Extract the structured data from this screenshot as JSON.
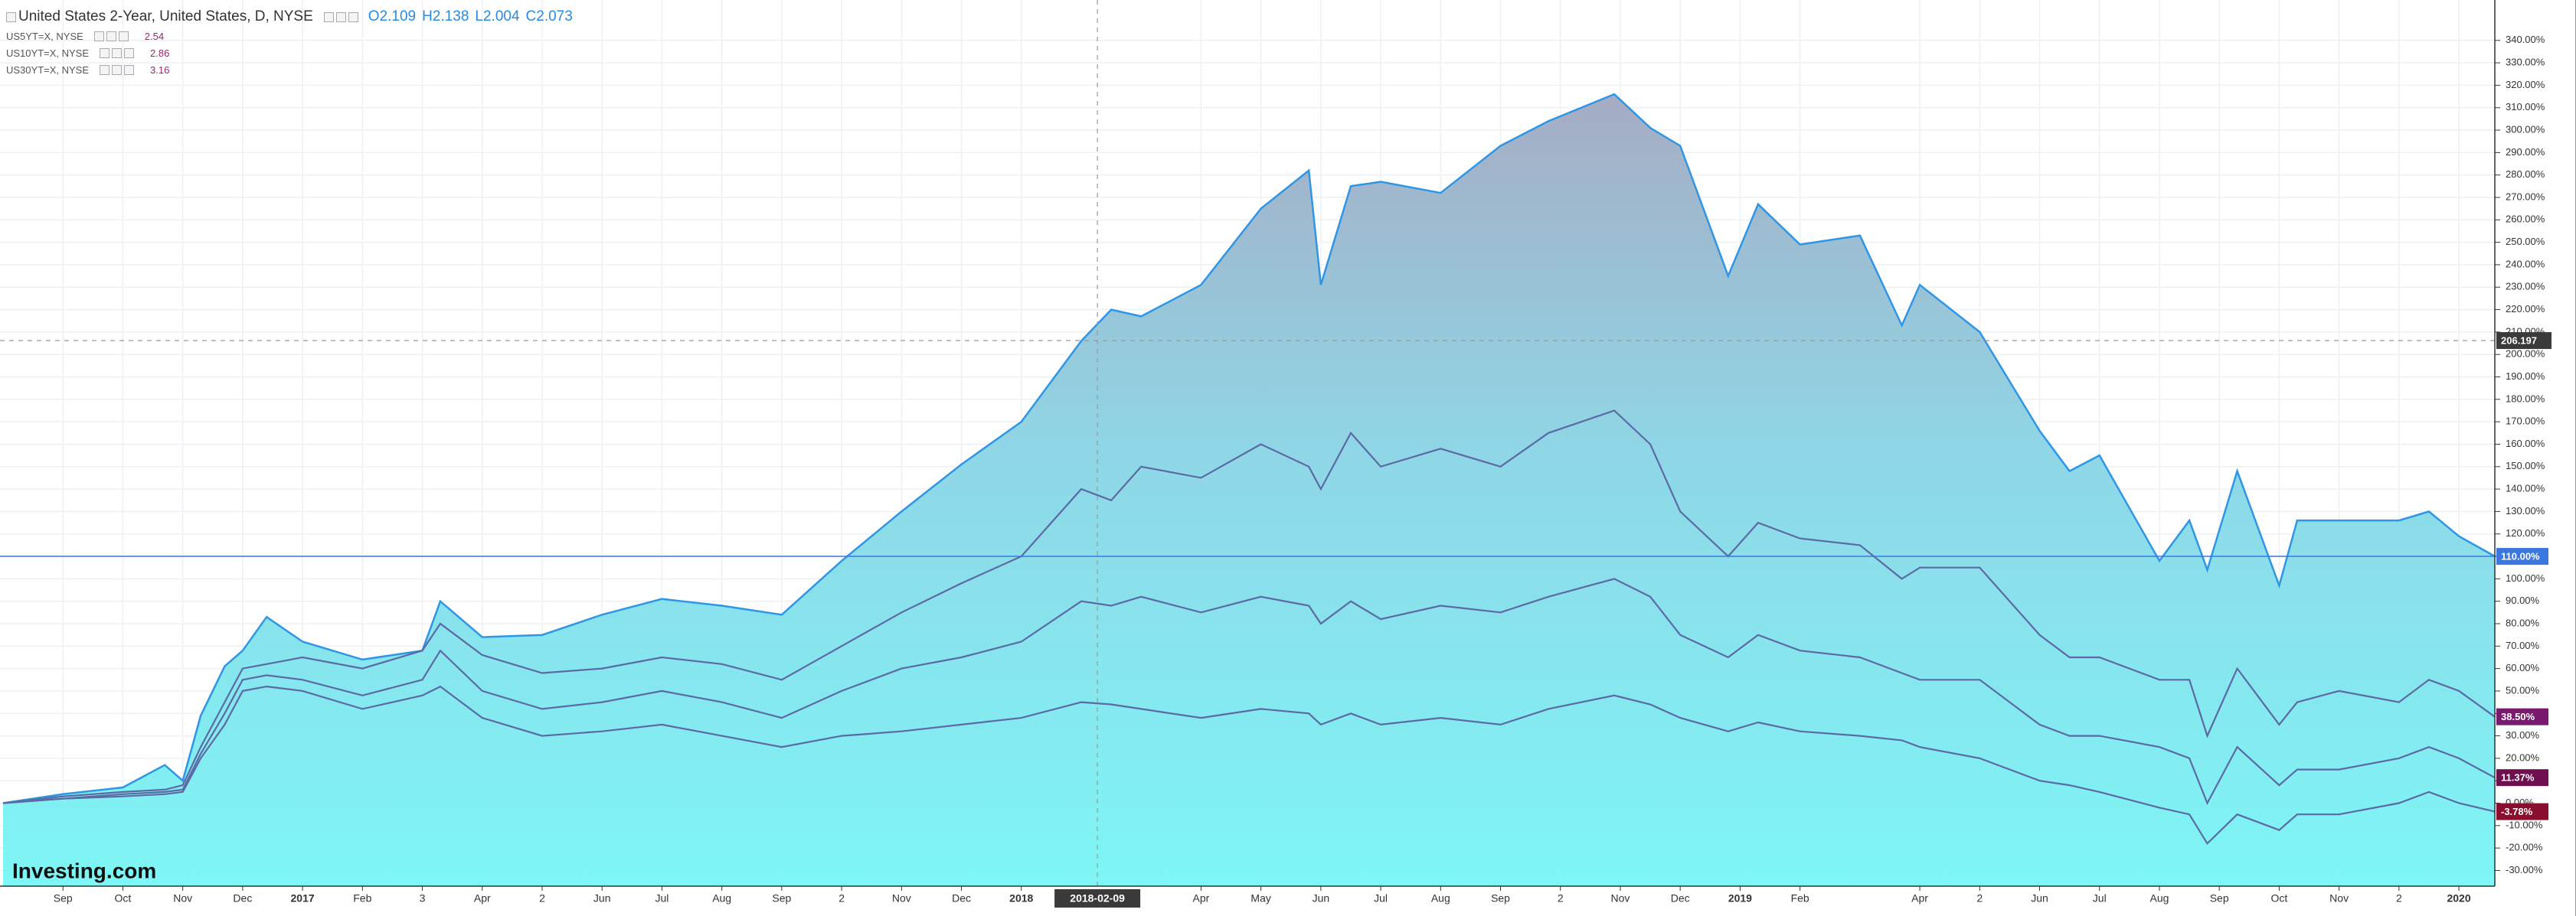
{
  "chart_data": {
    "type": "area",
    "x": [
      0,
      1,
      2,
      2.7,
      3,
      3.3,
      3.7,
      4,
      4.4,
      5,
      6,
      7,
      7.3,
      8,
      9,
      10,
      11,
      12,
      13,
      14,
      15,
      16,
      17,
      18,
      18.5,
      19,
      20,
      21,
      21.8,
      22,
      22.5,
      23,
      24,
      25,
      25.8,
      26.9,
      27.5,
      28,
      28.8,
      29.3,
      30,
      31,
      31.7,
      32,
      33,
      34,
      34.5,
      35,
      36,
      36.5,
      36.8,
      37.3,
      38,
      38.3,
      39,
      40,
      40.5,
      41,
      41.6
    ],
    "xlim": [
      0,
      41.6
    ],
    "xticks": [
      {
        "value": 1,
        "label": "Sep"
      },
      {
        "value": 2,
        "label": "Oct"
      },
      {
        "value": 3,
        "label": "Nov"
      },
      {
        "value": 4,
        "label": "Dec"
      },
      {
        "value": 5,
        "label": "2017"
      },
      {
        "value": 6,
        "label": "Feb"
      },
      {
        "value": 7,
        "label": "3"
      },
      {
        "value": 8,
        "label": "Apr"
      },
      {
        "value": 9,
        "label": "2"
      },
      {
        "value": 10,
        "label": "Jun"
      },
      {
        "value": 11,
        "label": "Jul"
      },
      {
        "value": 12,
        "label": "Aug"
      },
      {
        "value": 13,
        "label": "Sep"
      },
      {
        "value": 14,
        "label": "2"
      },
      {
        "value": 15,
        "label": "Nov"
      },
      {
        "value": 16,
        "label": "Dec"
      },
      {
        "value": 17,
        "label": "2018"
      },
      {
        "value": 20,
        "label": "Apr"
      },
      {
        "value": 21,
        "label": "May"
      },
      {
        "value": 22,
        "label": "Jun"
      },
      {
        "value": 23,
        "label": "Jul"
      },
      {
        "value": 24,
        "label": "Aug"
      },
      {
        "value": 25,
        "label": "Sep"
      },
      {
        "value": 26,
        "label": "2"
      },
      {
        "value": 27,
        "label": "Nov"
      },
      {
        "value": 28,
        "label": "Dec"
      },
      {
        "value": 29,
        "label": "2019"
      },
      {
        "value": 30,
        "label": "Feb"
      },
      {
        "value": 32,
        "label": "Apr"
      },
      {
        "value": 33,
        "label": "2"
      },
      {
        "value": 34,
        "label": "Jun"
      },
      {
        "value": 35,
        "label": "Jul"
      },
      {
        "value": 36,
        "label": "Aug"
      },
      {
        "value": 37,
        "label": "Sep"
      },
      {
        "value": 38,
        "label": "Oct"
      },
      {
        "value": 39,
        "label": "Nov"
      },
      {
        "value": 40,
        "label": "2"
      },
      {
        "value": 41,
        "label": "2020"
      }
    ],
    "ylim": [
      -37,
      358
    ],
    "yticks": [
      {
        "value": -30,
        "label": "-30.00%"
      },
      {
        "value": -20,
        "label": "-20.00%"
      },
      {
        "value": -10,
        "label": "-10.00%"
      },
      {
        "value": 0,
        "label": "0.00%"
      },
      {
        "value": 10,
        "label": "10.00%"
      },
      {
        "value": 20,
        "label": "20.00%"
      },
      {
        "value": 30,
        "label": "30.00%"
      },
      {
        "value": 40,
        "label": "40.00%"
      },
      {
        "value": 50,
        "label": "50.00%"
      },
      {
        "value": 60,
        "label": "60.00%"
      },
      {
        "value": 70,
        "label": "70.00%"
      },
      {
        "value": 80,
        "label": "80.00%"
      },
      {
        "value": 90,
        "label": "90.00%"
      },
      {
        "value": 100,
        "label": "100.00%"
      },
      {
        "value": 110,
        "label": "110.00%"
      },
      {
        "value": 120,
        "label": "120.00%"
      },
      {
        "value": 130,
        "label": "130.00%"
      },
      {
        "value": 140,
        "label": "140.00%"
      },
      {
        "value": 150,
        "label": "150.00%"
      },
      {
        "value": 160,
        "label": "160.00%"
      },
      {
        "value": 170,
        "label": "170.00%"
      },
      {
        "value": 180,
        "label": "180.00%"
      },
      {
        "value": 190,
        "label": "190.00%"
      },
      {
        "value": 200,
        "label": "200.00%"
      },
      {
        "value": 210,
        "label": "210.00%"
      },
      {
        "value": 220,
        "label": "220.00%"
      },
      {
        "value": 230,
        "label": "230.00%"
      },
      {
        "value": 240,
        "label": "240.00%"
      },
      {
        "value": 250,
        "label": "250.00%"
      },
      {
        "value": 260,
        "label": "260.00%"
      },
      {
        "value": 270,
        "label": "270.00%"
      },
      {
        "value": 280,
        "label": "280.00%"
      },
      {
        "value": 290,
        "label": "290.00%"
      },
      {
        "value": 300,
        "label": "300.00%"
      },
      {
        "value": 310,
        "label": "310.00%"
      },
      {
        "value": 320,
        "label": "320.00%"
      },
      {
        "value": 330,
        "label": "330.00%"
      },
      {
        "value": 340,
        "label": "340.00%"
      }
    ],
    "grid": true,
    "crosshair": {
      "x": {
        "value": 18.27,
        "label": "2018-02-09"
      },
      "y": 206.197
    },
    "watermark": "Investing.com",
    "series": [
      {
        "name": "United States 2-Year, United States, D, NYSE",
        "style": "area",
        "color": "#2f96e6",
        "tag_color": "#3a78e0",
        "price_label": "110.00%",
        "ohlc": [
          {
            "key": "O",
            "value": 2.109
          },
          {
            "key": "H",
            "value": 2.138
          },
          {
            "key": "L",
            "value": 2.004
          },
          {
            "key": "C",
            "value": 2.073
          }
        ],
        "values": [
          0,
          4,
          7,
          17,
          10,
          39,
          61,
          68,
          83,
          72,
          64,
          68,
          90,
          74,
          75,
          84,
          91,
          88,
          84,
          108,
          130,
          151,
          170,
          206,
          220,
          217,
          231,
          265,
          282,
          231,
          275,
          277,
          272,
          293,
          304,
          316,
          301,
          293,
          235,
          267,
          249,
          253,
          213,
          231,
          210,
          166,
          148,
          155,
          108,
          126,
          104,
          148,
          97,
          126,
          126,
          126,
          130,
          119,
          110
        ]
      },
      {
        "name": "US5YT=X, NYSE",
        "style": "line",
        "color": "#5b6aa3",
        "tag_color": "#7a1a6e",
        "quote": 2.54,
        "price_label": "38.50%",
        "values": [
          0,
          3,
          5,
          6,
          8,
          25,
          45,
          60,
          62,
          65,
          60,
          68,
          80,
          66,
          58,
          60,
          65,
          62,
          55,
          70,
          85,
          98,
          110,
          140,
          135,
          150,
          145,
          160,
          150,
          140,
          165,
          150,
          158,
          150,
          165,
          175,
          160,
          130,
          110,
          125,
          118,
          115,
          100,
          105,
          105,
          75,
          65,
          65,
          55,
          55,
          30,
          60,
          35,
          45,
          50,
          45,
          55,
          50,
          38.5
        ]
      },
      {
        "name": "US10YT=X, NYSE",
        "style": "line",
        "color": "#5b6aa3",
        "tag_color": "#6e1050",
        "quote": 2.86,
        "price_label": "11.37%",
        "values": [
          0,
          2,
          4,
          5,
          6,
          22,
          40,
          55,
          57,
          55,
          48,
          55,
          68,
          50,
          42,
          45,
          50,
          45,
          38,
          50,
          60,
          65,
          72,
          90,
          88,
          92,
          85,
          92,
          88,
          80,
          90,
          82,
          88,
          85,
          92,
          100,
          92,
          75,
          65,
          75,
          68,
          65,
          58,
          55,
          55,
          35,
          30,
          30,
          25,
          20,
          0,
          25,
          8,
          15,
          15,
          20,
          25,
          20,
          11.37
        ]
      },
      {
        "name": "US30YT=X, NYSE",
        "style": "line",
        "color": "#5b6aa3",
        "tag_color": "#8a0f2e",
        "quote": 3.16,
        "price_label": "-3.78%",
        "values": [
          0,
          2,
          3,
          4,
          5,
          20,
          35,
          50,
          52,
          50,
          42,
          48,
          52,
          38,
          30,
          32,
          35,
          30,
          25,
          30,
          32,
          35,
          38,
          45,
          44,
          42,
          38,
          42,
          40,
          35,
          40,
          35,
          38,
          35,
          42,
          48,
          44,
          38,
          32,
          36,
          32,
          30,
          28,
          25,
          20,
          10,
          8,
          5,
          -2,
          -5,
          -18,
          -5,
          -12,
          -5,
          -5,
          0,
          5,
          0,
          -3.78
        ]
      }
    ]
  }
}
